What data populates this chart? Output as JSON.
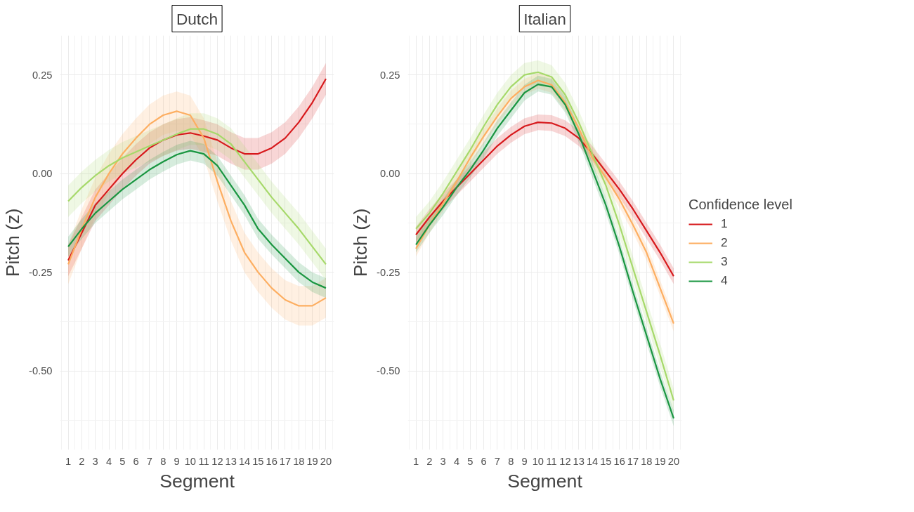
{
  "chart_data": [
    {
      "type": "line",
      "title": "Dutch",
      "xlabel": "Segment",
      "ylabel": "Pitch (z)",
      "x": [
        1,
        2,
        3,
        4,
        5,
        6,
        7,
        8,
        9,
        10,
        11,
        12,
        13,
        14,
        15,
        16,
        17,
        18,
        19,
        20
      ],
      "xlim": [
        0.4,
        20.6
      ],
      "xticks": [
        1,
        2,
        3,
        4,
        5,
        6,
        7,
        8,
        9,
        10,
        11,
        12,
        13,
        14,
        15,
        16,
        17,
        18,
        19,
        20
      ],
      "ylim": [
        -0.7,
        0.35
      ],
      "yticks": [
        {
          "value": 0.25,
          "label": "0.25"
        },
        {
          "value": 0,
          "label": "0.00"
        },
        {
          "value": -0.25,
          "label": "-0.25"
        },
        {
          "value": -0.5,
          "label": "-0.50"
        }
      ],
      "grid": true,
      "series": [
        {
          "color": "#d7191c",
          "values": [
            -0.22,
            -0.15,
            -0.08,
            -0.04,
            0.0,
            0.035,
            0.065,
            0.085,
            0.098,
            0.103,
            0.095,
            0.085,
            0.065,
            0.05,
            0.05,
            0.065,
            0.09,
            0.13,
            0.18,
            0.24
          ],
          "lower": [
            -0.26,
            -0.19,
            -0.12,
            -0.08,
            -0.04,
            -0.005,
            0.025,
            0.045,
            0.058,
            0.063,
            0.055,
            0.045,
            0.025,
            0.01,
            0.01,
            0.025,
            0.05,
            0.09,
            0.14,
            0.2
          ],
          "upper": [
            -0.18,
            -0.11,
            -0.04,
            0.0,
            0.04,
            0.075,
            0.105,
            0.125,
            0.138,
            0.143,
            0.135,
            0.125,
            0.105,
            0.09,
            0.09,
            0.105,
            0.13,
            0.17,
            0.22,
            0.28
          ]
        },
        {
          "color": "#fdae61",
          "values": [
            -0.23,
            -0.14,
            -0.06,
            0.0,
            0.05,
            0.09,
            0.125,
            0.148,
            0.158,
            0.148,
            0.09,
            -0.02,
            -0.12,
            -0.2,
            -0.25,
            -0.29,
            -0.32,
            -0.335,
            -0.335,
            -0.315
          ],
          "lower": [
            -0.28,
            -0.19,
            -0.11,
            -0.05,
            0.0,
            0.04,
            0.075,
            0.098,
            0.108,
            0.098,
            0.04,
            -0.07,
            -0.17,
            -0.25,
            -0.3,
            -0.34,
            -0.37,
            -0.385,
            -0.385,
            -0.365
          ],
          "upper": [
            -0.18,
            -0.09,
            -0.01,
            0.05,
            0.1,
            0.14,
            0.175,
            0.198,
            0.208,
            0.198,
            0.14,
            0.03,
            -0.07,
            -0.15,
            -0.2,
            -0.24,
            -0.27,
            -0.285,
            -0.285,
            -0.265
          ]
        },
        {
          "color": "#a6d96a",
          "values": [
            -0.07,
            -0.035,
            -0.005,
            0.02,
            0.04,
            0.055,
            0.07,
            0.085,
            0.1,
            0.113,
            0.113,
            0.1,
            0.075,
            0.03,
            -0.015,
            -0.06,
            -0.1,
            -0.14,
            -0.185,
            -0.23
          ],
          "lower": [
            -0.11,
            -0.075,
            -0.045,
            -0.02,
            0.0,
            0.015,
            0.03,
            0.045,
            0.06,
            0.073,
            0.073,
            0.06,
            0.035,
            -0.01,
            -0.055,
            -0.1,
            -0.14,
            -0.18,
            -0.225,
            -0.27
          ],
          "upper": [
            -0.03,
            0.005,
            0.035,
            0.06,
            0.08,
            0.095,
            0.11,
            0.125,
            0.14,
            0.153,
            0.153,
            0.14,
            0.115,
            0.07,
            0.025,
            -0.02,
            -0.06,
            -0.1,
            -0.145,
            -0.19
          ]
        },
        {
          "color": "#1a9641",
          "values": [
            -0.185,
            -0.14,
            -0.1,
            -0.07,
            -0.04,
            -0.015,
            0.01,
            0.03,
            0.048,
            0.058,
            0.05,
            0.02,
            -0.03,
            -0.08,
            -0.14,
            -0.18,
            -0.215,
            -0.25,
            -0.275,
            -0.29
          ],
          "lower": [
            -0.21,
            -0.165,
            -0.125,
            -0.095,
            -0.065,
            -0.04,
            -0.015,
            0.005,
            0.023,
            0.033,
            0.025,
            -0.005,
            -0.055,
            -0.105,
            -0.165,
            -0.205,
            -0.24,
            -0.275,
            -0.3,
            -0.315
          ],
          "upper": [
            -0.16,
            -0.115,
            -0.075,
            -0.045,
            -0.015,
            0.01,
            0.035,
            0.055,
            0.073,
            0.083,
            0.075,
            0.045,
            -0.005,
            -0.055,
            -0.115,
            -0.155,
            -0.19,
            -0.225,
            -0.25,
            -0.265
          ]
        }
      ]
    },
    {
      "type": "line",
      "title": "Italian",
      "xlabel": "Segment",
      "ylabel": "Pitch (z)",
      "legend_title": "Confidence level",
      "legend": "right",
      "x": [
        1,
        2,
        3,
        4,
        5,
        6,
        7,
        8,
        9,
        10,
        11,
        12,
        13,
        14,
        15,
        16,
        17,
        18,
        19,
        20
      ],
      "xlim": [
        0.4,
        20.6
      ],
      "xticks": [
        1,
        2,
        3,
        4,
        5,
        6,
        7,
        8,
        9,
        10,
        11,
        12,
        13,
        14,
        15,
        16,
        17,
        18,
        19,
        20
      ],
      "ylim": [
        -0.7,
        0.35
      ],
      "yticks": [
        {
          "value": 0.25,
          "label": "0.25"
        },
        {
          "value": 0,
          "label": "0.00"
        },
        {
          "value": -0.25,
          "label": "-0.25"
        },
        {
          "value": -0.5,
          "label": "-0.50"
        }
      ],
      "grid": true,
      "series": [
        {
          "name": "1",
          "color": "#d7191c",
          "values": [
            -0.155,
            -0.11,
            -0.07,
            -0.035,
            0.0,
            0.035,
            0.07,
            0.098,
            0.12,
            0.13,
            0.128,
            0.115,
            0.09,
            0.05,
            0.005,
            -0.04,
            -0.09,
            -0.145,
            -0.2,
            -0.26
          ],
          "lower": [
            -0.175,
            -0.13,
            -0.09,
            -0.055,
            -0.02,
            0.015,
            0.05,
            0.078,
            0.1,
            0.11,
            0.108,
            0.095,
            0.07,
            0.03,
            -0.015,
            -0.06,
            -0.11,
            -0.165,
            -0.22,
            -0.28
          ],
          "upper": [
            -0.135,
            -0.09,
            -0.05,
            -0.015,
            0.02,
            0.055,
            0.09,
            0.118,
            0.14,
            0.15,
            0.148,
            0.135,
            0.11,
            0.07,
            0.025,
            -0.02,
            -0.07,
            -0.125,
            -0.18,
            -0.24
          ]
        },
        {
          "name": "2",
          "color": "#fdae61",
          "values": [
            -0.19,
            -0.13,
            -0.075,
            -0.02,
            0.04,
            0.095,
            0.145,
            0.19,
            0.22,
            0.236,
            0.225,
            0.18,
            0.115,
            0.04,
            -0.01,
            -0.065,
            -0.13,
            -0.2,
            -0.29,
            -0.38
          ],
          "lower": [
            -0.21,
            -0.15,
            -0.095,
            -0.04,
            0.02,
            0.075,
            0.125,
            0.17,
            0.2,
            0.215,
            0.205,
            0.16,
            0.095,
            0.02,
            -0.03,
            -0.085,
            -0.15,
            -0.22,
            -0.31,
            -0.4
          ],
          "upper": [
            -0.17,
            -0.11,
            -0.055,
            0.0,
            0.06,
            0.115,
            0.165,
            0.21,
            0.24,
            0.255,
            0.245,
            0.2,
            0.135,
            0.06,
            0.01,
            -0.045,
            -0.11,
            -0.18,
            -0.27,
            -0.36
          ]
        },
        {
          "name": "3",
          "color": "#a6d96a",
          "values": [
            -0.14,
            -0.1,
            -0.05,
            0.005,
            0.06,
            0.12,
            0.175,
            0.22,
            0.25,
            0.257,
            0.245,
            0.2,
            0.13,
            0.05,
            -0.03,
            -0.13,
            -0.24,
            -0.35,
            -0.46,
            -0.575
          ],
          "lower": [
            -0.17,
            -0.13,
            -0.08,
            -0.025,
            0.03,
            0.09,
            0.145,
            0.19,
            0.22,
            0.227,
            0.215,
            0.17,
            0.1,
            0.02,
            -0.06,
            -0.16,
            -0.27,
            -0.38,
            -0.49,
            -0.605
          ],
          "upper": [
            -0.11,
            -0.07,
            -0.02,
            0.035,
            0.09,
            0.15,
            0.205,
            0.25,
            0.28,
            0.287,
            0.275,
            0.23,
            0.16,
            0.08,
            0.0,
            -0.1,
            -0.21,
            -0.32,
            -0.43,
            -0.545
          ]
        },
        {
          "name": "4",
          "color": "#1a9641",
          "values": [
            -0.18,
            -0.13,
            -0.085,
            -0.035,
            0.01,
            0.06,
            0.115,
            0.16,
            0.205,
            0.226,
            0.22,
            0.175,
            0.1,
            0.01,
            -0.08,
            -0.185,
            -0.3,
            -0.41,
            -0.52,
            -0.62
          ],
          "lower": [
            -0.2,
            -0.15,
            -0.105,
            -0.055,
            -0.01,
            0.04,
            0.095,
            0.14,
            0.185,
            0.208,
            0.2,
            0.155,
            0.08,
            -0.01,
            -0.1,
            -0.205,
            -0.32,
            -0.43,
            -0.54,
            -0.64
          ],
          "upper": [
            -0.16,
            -0.11,
            -0.065,
            -0.015,
            0.03,
            0.08,
            0.135,
            0.18,
            0.225,
            0.248,
            0.24,
            0.195,
            0.12,
            0.03,
            -0.06,
            -0.165,
            -0.28,
            -0.39,
            -0.5,
            -0.6
          ]
        }
      ]
    }
  ]
}
